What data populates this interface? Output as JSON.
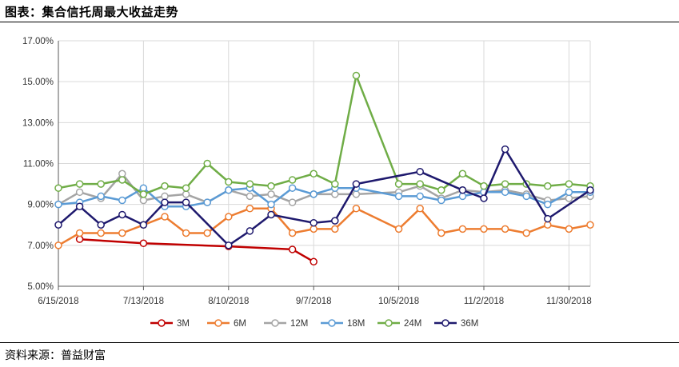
{
  "header": {
    "title": "图表：集合信托周最大收益走势"
  },
  "footer": {
    "source": "资料来源：普益财富"
  },
  "chart_data": {
    "type": "line",
    "title": "",
    "xlabel": "",
    "ylabel": "",
    "ylim": [
      5.0,
      17.0
    ],
    "y_ticks": [
      "5.00%",
      "7.00%",
      "9.00%",
      "11.00%",
      "13.00%",
      "15.00%",
      "17.00%"
    ],
    "x_range": [
      "2018-06-15",
      "2018-12-07"
    ],
    "x_tick_labels": [
      "6/15/2018",
      "7/13/2018",
      "8/10/2018",
      "9/7/2018",
      "10/5/2018",
      "11/2/2018",
      "11/30/2018"
    ],
    "x_tick_dates": [
      "2018-06-15",
      "2018-07-13",
      "2018-08-10",
      "2018-09-07",
      "2018-10-05",
      "2018-11-02",
      "2018-11-30"
    ],
    "grid": true,
    "legend_position": "bottom",
    "series": [
      {
        "name": "3M",
        "color": "#c00000",
        "points": [
          [
            "2018-06-15",
            null
          ],
          [
            "2018-06-22",
            7.3
          ],
          [
            "2018-07-13",
            7.1
          ],
          [
            "2018-08-10",
            6.95
          ],
          [
            "2018-08-31",
            6.8
          ],
          [
            "2018-09-07",
            6.2
          ]
        ]
      },
      {
        "name": "6M",
        "color": "#ed7d31",
        "points": [
          [
            "2018-06-15",
            7.0
          ],
          [
            "2018-06-22",
            7.6
          ],
          [
            "2018-06-29",
            7.6
          ],
          [
            "2018-07-06",
            7.6
          ],
          [
            "2018-07-13",
            8.0
          ],
          [
            "2018-07-20",
            8.4
          ],
          [
            "2018-07-27",
            7.6
          ],
          [
            "2018-08-03",
            7.6
          ],
          [
            "2018-08-10",
            8.4
          ],
          [
            "2018-08-17",
            8.8
          ],
          [
            "2018-08-24",
            8.8
          ],
          [
            "2018-08-31",
            7.6
          ],
          [
            "2018-09-07",
            7.8
          ],
          [
            "2018-09-14",
            7.8
          ],
          [
            "2018-09-21",
            8.8
          ],
          [
            "2018-10-05",
            7.8
          ],
          [
            "2018-10-12",
            8.8
          ],
          [
            "2018-10-19",
            7.6
          ],
          [
            "2018-10-26",
            7.8
          ],
          [
            "2018-11-02",
            7.8
          ],
          [
            "2018-11-09",
            7.8
          ],
          [
            "2018-11-16",
            7.6
          ],
          [
            "2018-11-23",
            8.0
          ],
          [
            "2018-11-30",
            7.8
          ],
          [
            "2018-12-07",
            8.0
          ]
        ]
      },
      {
        "name": "12M",
        "color": "#a5a5a5",
        "points": [
          [
            "2018-06-15",
            9.0
          ],
          [
            "2018-06-22",
            9.6
          ],
          [
            "2018-06-29",
            9.3
          ],
          [
            "2018-07-06",
            10.5
          ],
          [
            "2018-07-13",
            9.2
          ],
          [
            "2018-07-20",
            9.4
          ],
          [
            "2018-07-27",
            9.5
          ],
          [
            "2018-08-03",
            9.1
          ],
          [
            "2018-08-10",
            9.7
          ],
          [
            "2018-08-17",
            9.4
          ],
          [
            "2018-08-24",
            9.5
          ],
          [
            "2018-08-31",
            9.1
          ],
          [
            "2018-09-07",
            9.5
          ],
          [
            "2018-09-14",
            9.5
          ],
          [
            "2018-09-21",
            9.5
          ],
          [
            "2018-10-05",
            9.6
          ],
          [
            "2018-10-12",
            9.9
          ],
          [
            "2018-10-19",
            9.3
          ],
          [
            "2018-10-26",
            9.7
          ],
          [
            "2018-11-02",
            9.6
          ],
          [
            "2018-11-09",
            9.7
          ],
          [
            "2018-11-16",
            9.5
          ],
          [
            "2018-11-23",
            9.2
          ],
          [
            "2018-11-30",
            9.3
          ],
          [
            "2018-12-07",
            9.4
          ]
        ]
      },
      {
        "name": "18M",
        "color": "#5b9bd5",
        "points": [
          [
            "2018-06-15",
            9.0
          ],
          [
            "2018-06-22",
            9.1
          ],
          [
            "2018-06-29",
            9.4
          ],
          [
            "2018-07-06",
            9.2
          ],
          [
            "2018-07-13",
            9.8
          ],
          [
            "2018-07-20",
            8.9
          ],
          [
            "2018-07-27",
            8.9
          ],
          [
            "2018-08-03",
            9.1
          ],
          [
            "2018-08-10",
            9.7
          ],
          [
            "2018-08-17",
            9.8
          ],
          [
            "2018-08-24",
            9.0
          ],
          [
            "2018-08-31",
            9.8
          ],
          [
            "2018-09-07",
            9.5
          ],
          [
            "2018-09-14",
            9.8
          ],
          [
            "2018-09-21",
            9.8
          ],
          [
            "2018-10-05",
            9.4
          ],
          [
            "2018-10-12",
            9.4
          ],
          [
            "2018-10-19",
            9.2
          ],
          [
            "2018-10-26",
            9.4
          ],
          [
            "2018-11-02",
            9.6
          ],
          [
            "2018-11-09",
            9.6
          ],
          [
            "2018-11-16",
            9.4
          ],
          [
            "2018-11-23",
            9.0
          ],
          [
            "2018-11-30",
            9.6
          ],
          [
            "2018-12-07",
            9.6
          ]
        ]
      },
      {
        "name": "24M",
        "color": "#70ad47",
        "points": [
          [
            "2018-06-15",
            9.8
          ],
          [
            "2018-06-22",
            10.0
          ],
          [
            "2018-06-29",
            10.0
          ],
          [
            "2018-07-06",
            10.2
          ],
          [
            "2018-07-13",
            9.5
          ],
          [
            "2018-07-20",
            9.9
          ],
          [
            "2018-07-27",
            9.8
          ],
          [
            "2018-08-03",
            11.0
          ],
          [
            "2018-08-10",
            10.1
          ],
          [
            "2018-08-17",
            10.0
          ],
          [
            "2018-08-24",
            9.9
          ],
          [
            "2018-08-31",
            10.2
          ],
          [
            "2018-09-07",
            10.5
          ],
          [
            "2018-09-14",
            10.0
          ],
          [
            "2018-09-21",
            15.3
          ],
          [
            "2018-10-05",
            10.0
          ],
          [
            "2018-10-12",
            10.0
          ],
          [
            "2018-10-19",
            9.7
          ],
          [
            "2018-10-26",
            10.5
          ],
          [
            "2018-11-02",
            9.9
          ],
          [
            "2018-11-09",
            10.0
          ],
          [
            "2018-11-16",
            10.0
          ],
          [
            "2018-11-23",
            9.9
          ],
          [
            "2018-11-30",
            10.0
          ],
          [
            "2018-12-07",
            9.9
          ]
        ]
      },
      {
        "name": "36M",
        "color": "#1f1a6e",
        "points": [
          [
            "2018-06-15",
            8.0
          ],
          [
            "2018-06-22",
            8.9
          ],
          [
            "2018-06-29",
            8.0
          ],
          [
            "2018-07-06",
            8.5
          ],
          [
            "2018-07-13",
            8.0
          ],
          [
            "2018-07-20",
            9.1
          ],
          [
            "2018-07-27",
            9.1
          ],
          [
            "2018-08-10",
            7.0
          ],
          [
            "2018-08-17",
            7.7
          ],
          [
            "2018-08-24",
            8.5
          ],
          [
            "2018-09-07",
            8.1
          ],
          [
            "2018-09-14",
            8.2
          ],
          [
            "2018-09-21",
            10.0
          ],
          [
            "2018-10-12",
            10.6
          ],
          [
            "2018-10-26",
            9.7
          ],
          [
            "2018-11-02",
            9.3
          ],
          [
            "2018-11-09",
            11.7
          ],
          [
            "2018-11-23",
            8.3
          ],
          [
            "2018-12-07",
            9.7
          ]
        ]
      }
    ]
  }
}
